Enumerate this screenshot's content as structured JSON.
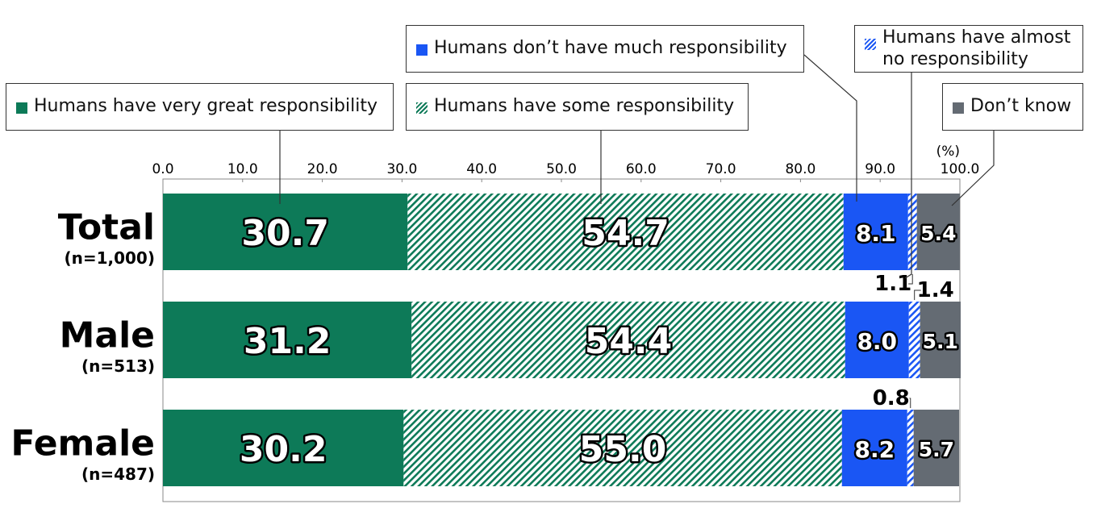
{
  "chart_data": {
    "type": "stacked-bar-horizontal",
    "categories": [
      "Total",
      "Male",
      "Female"
    ],
    "category_notes": [
      "(n=1,000)",
      "(n=513)",
      "(n=487)"
    ],
    "unit": "(%)",
    "xlim": [
      0,
      100
    ],
    "xticks": [
      {
        "value": 0,
        "label": "0.0"
      },
      {
        "value": 10,
        "label": "10.0"
      },
      {
        "value": 20,
        "label": "20.0"
      },
      {
        "value": 30,
        "label": "30.0"
      },
      {
        "value": 40,
        "label": "40.0"
      },
      {
        "value": 50,
        "label": "50.0"
      },
      {
        "value": 60,
        "label": "60.0"
      },
      {
        "value": 70,
        "label": "70.0"
      },
      {
        "value": 80,
        "label": "80.0"
      },
      {
        "value": 90,
        "label": "90.0"
      },
      {
        "value": 100,
        "label": "100.0"
      }
    ],
    "series": [
      {
        "name": "Humans have very great responsibility",
        "color": "#0d7a58",
        "pattern": "solid",
        "values": [
          30.7,
          31.2,
          30.2
        ],
        "value_labels": [
          "30.7",
          "31.2",
          "30.2"
        ]
      },
      {
        "name": "Humans have some responsibility",
        "color": "#0d7a58",
        "pattern": "hatch",
        "values": [
          54.7,
          54.4,
          55
        ],
        "value_labels": [
          "54.7",
          "54.4",
          "55.0"
        ]
      },
      {
        "name": "Humans don’t have much responsibility",
        "color": "#1a56f4",
        "pattern": "solid",
        "values": [
          8.1,
          8,
          8.2
        ],
        "value_labels": [
          "8.1",
          "8.0",
          "8.2"
        ]
      },
      {
        "name": "Humans have almost no responsibility",
        "color": "#1a56f4",
        "pattern": "hatch",
        "values": [
          1.1,
          1.4,
          0.8
        ],
        "value_labels": [
          "1.1",
          "1.4",
          "0.8"
        ]
      },
      {
        "name": "Don’t know",
        "color": "#646b73",
        "pattern": "solid",
        "values": [
          5.4,
          5.1,
          5.7
        ],
        "value_labels": [
          "5.4",
          "5.1",
          "5.7"
        ]
      }
    ]
  }
}
